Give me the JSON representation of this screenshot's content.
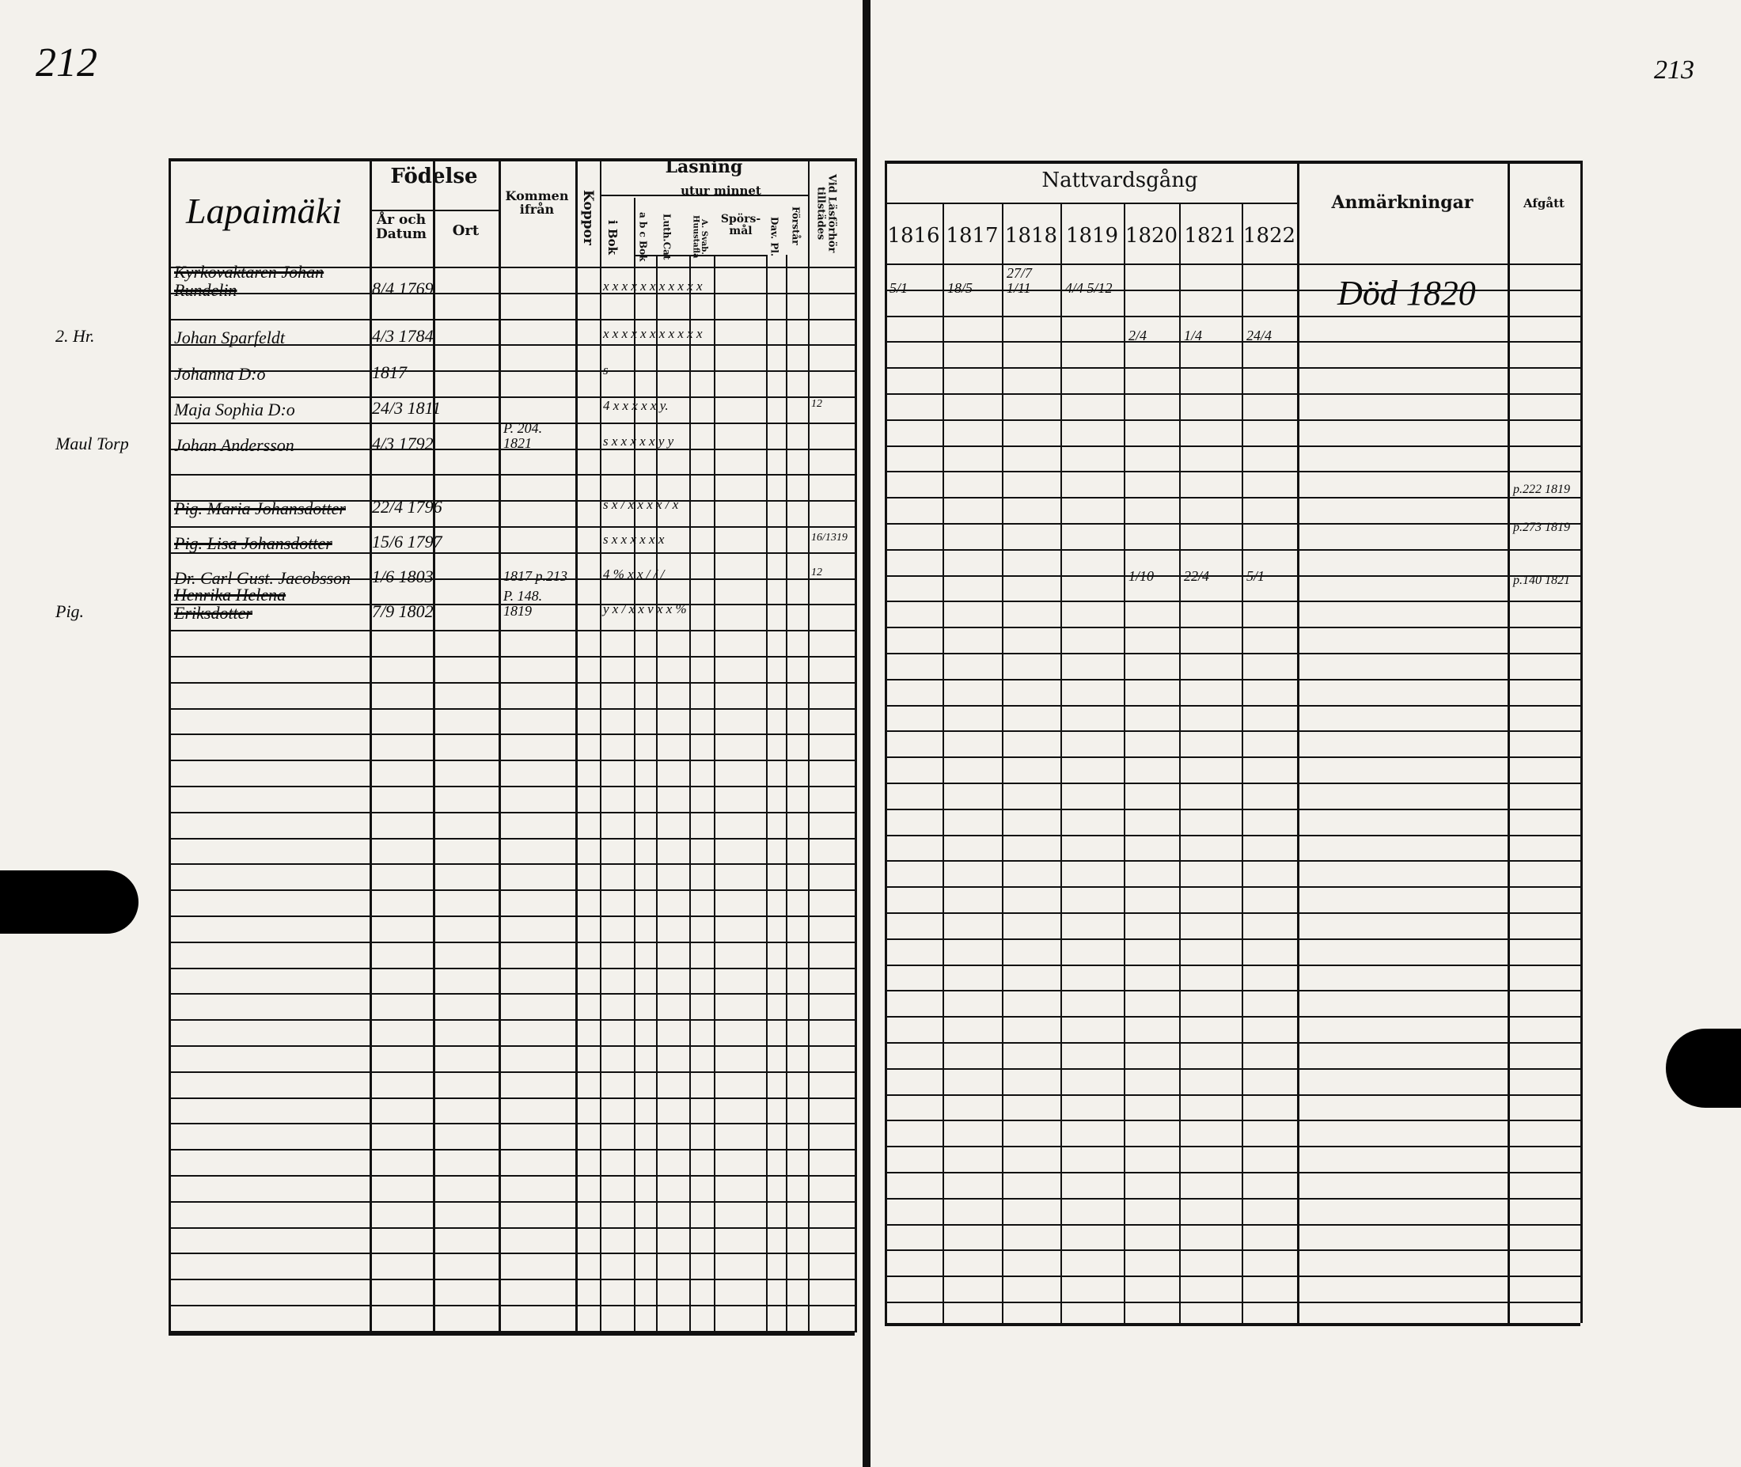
{
  "page_number_left": "212",
  "page_number_right": "213",
  "left": {
    "parish_title": "Lapaimäki",
    "headers": {
      "fodelse": "Födelse",
      "ar_och_datum": "År och Datum",
      "ort": "Ort",
      "kommen_ifran": "Kommen ifrån",
      "koppor": "Koppor",
      "lasning": "Läsning",
      "i_bok": "i Bok",
      "utur_minnet": "utur minnet",
      "abc_bok": "a b c Bok",
      "luth_cat": "Luth.Cat",
      "a_svab_huustafla": "A. Svab. Huustafla",
      "sporsmal": "Spörs-mål",
      "dav_pl": "Dav. Pl.",
      "forstar": "Förstår",
      "vid_lasforhor": "Vid Läsförhör tillstädes"
    },
    "entries": [
      {
        "margin": "",
        "name": "Kyrkovaktaren Johan Rundelin",
        "born": "8/4 1769",
        "from": "",
        "koppor": "",
        "reading": "x x x x x x x x x    x    x",
        "present": ""
      },
      {
        "margin": "2. Hr.",
        "name": "Johan Sparfeldt",
        "born": "4/3 1784",
        "from": "",
        "koppor": "",
        "reading": "x x x x x x x x x    x    x",
        "present": ""
      },
      {
        "margin": "",
        "name": "Johanna  D:o",
        "born": "1817",
        "from": "",
        "koppor": "",
        "reading": "s",
        "present": ""
      },
      {
        "margin": "",
        "name": "Maja Sophia  D:o",
        "born": "24/3 1811",
        "from": "",
        "koppor": "",
        "reading": "4 x x x x x    y.",
        "present": "12"
      },
      {
        "margin": "Maul Torp",
        "name": "Johan Andersson",
        "born": "4/3 1792",
        "from": "P. 204. 1821",
        "koppor": "",
        "reading": "s  x  x x x x  y  y",
        "present": ""
      },
      {
        "margin": "",
        "name": "Pig. Maria Johansdotter",
        "born": "22/4 1796",
        "from": "",
        "koppor": "",
        "reading": "s x / x x x x / x",
        "present": ""
      },
      {
        "margin": "",
        "name": "Pig. Lisa Johansdotter",
        "born": "15/6 1797",
        "from": "",
        "koppor": "",
        "reading": "s x  x x x x  x",
        "present": "16/1319"
      },
      {
        "margin": "",
        "name": "Dr. Carl Gust. Jacobsson",
        "born": "1/6 1803",
        "from": "1817 p.213",
        "koppor": "",
        "reading": "4 %  x x / /    /",
        "present": "12"
      },
      {
        "margin": "Pig.",
        "name": "Henrika Helena Eriksdotter",
        "born": "7/9 1802",
        "from": "P. 148. 1819",
        "koppor": "",
        "reading": "y  x / x x  v x    x %",
        "present": ""
      }
    ]
  },
  "right": {
    "headers": {
      "nattvardsgang": "Nattvardsgång",
      "years": [
        "1816",
        "1817",
        "1818",
        "1819",
        "1820",
        "1821",
        "1822"
      ],
      "anmarkningar": "Anmärkningar",
      "afgatt": "Afgått"
    },
    "remark_dead": "Död 1820",
    "communion_marks": [
      {
        "row": 0,
        "cols": [
          "5/1",
          "18/5",
          "27/7  1/11",
          "4/4  5/12",
          "",
          "",
          ""
        ]
      },
      {
        "row": 1,
        "cols": [
          "",
          "",
          "",
          "",
          "2/4",
          "1/4",
          "24/4"
        ]
      },
      {
        "row": 7,
        "cols": [
          "",
          "",
          "",
          "",
          "1/10",
          "22/4",
          "5/1"
        ]
      }
    ],
    "afgatt_entries": [
      "p.222 1819",
      "p.273 1819",
      "p.140 1821"
    ]
  }
}
